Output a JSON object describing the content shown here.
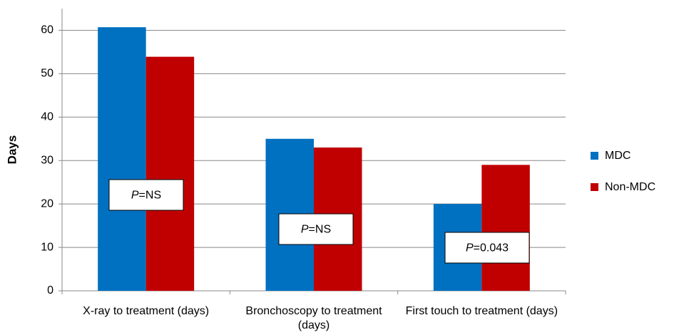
{
  "chart_data": {
    "type": "bar",
    "y_label": "Days",
    "categories": [
      "X-ray to treatment (days)",
      "Bronchoscopy to treatment (days)",
      "First touch to treatment (days)"
    ],
    "series": [
      {
        "name": "MDC",
        "color": "#0070c0",
        "values": [
          60.7,
          35,
          20
        ]
      },
      {
        "name": "Non-MDC",
        "color": "#c00000",
        "values": [
          53.9,
          33,
          29
        ]
      }
    ],
    "annotations": [
      "P=NS",
      "P=NS",
      "P=0.043"
    ],
    "ylim": [
      0,
      65
    ],
    "yticks": [
      0,
      10,
      20,
      30,
      40,
      50,
      60
    ],
    "grid": true,
    "legend": "right"
  }
}
